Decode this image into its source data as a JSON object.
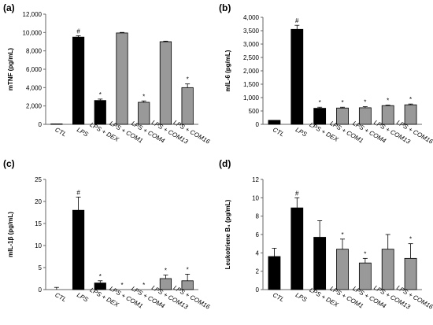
{
  "chart_data": [
    {
      "type": "bar",
      "panel_label": "(a)",
      "ylabel": "mTNF (pg/mL)",
      "ylim": [
        0,
        12000
      ],
      "yticks": [
        0,
        2000,
        4000,
        6000,
        8000,
        10000,
        12000
      ],
      "ytick_labels": [
        "0",
        "2,000",
        "4,000",
        "6,000",
        "8,000",
        "10,000",
        "12,000"
      ],
      "categories": [
        "CTL",
        "LPS",
        "LPS + DEX",
        "LPS + COM1",
        "LPS + COM4",
        "LPS + COM13",
        "LPS + COM16"
      ],
      "values": [
        50,
        9500,
        2600,
        9950,
        2400,
        9000,
        4000
      ],
      "errors": [
        0,
        150,
        150,
        60,
        150,
        60,
        400
      ],
      "bar_colors": [
        "#000000",
        "#000000",
        "#000000",
        "#999999",
        "#999999",
        "#999999",
        "#999999"
      ],
      "marks": [
        "",
        "#",
        "*",
        "",
        "*",
        "",
        "*"
      ],
      "grid": false
    },
    {
      "type": "bar",
      "panel_label": "(b)",
      "ylabel": "mIL-6 (pg/mL)",
      "ylim": [
        0,
        4000
      ],
      "yticks": [
        0,
        500,
        1000,
        1500,
        2000,
        2500,
        3000,
        3500,
        4000
      ],
      "ytick_labels": [
        "0",
        "500",
        "1,000",
        "1,500",
        "2,000",
        "2,500",
        "3,000",
        "3,500",
        "4,000"
      ],
      "categories": [
        "CTL",
        "LPS",
        "LPS + DEX",
        "LPS + COM1",
        "LPS + COM4",
        "LPS + COM13",
        "LPS + COM16"
      ],
      "values": [
        150,
        3550,
        600,
        610,
        620,
        700,
        730
      ],
      "errors": [
        0,
        150,
        40,
        30,
        40,
        20,
        30
      ],
      "bar_colors": [
        "#000000",
        "#000000",
        "#000000",
        "#999999",
        "#999999",
        "#999999",
        "#999999"
      ],
      "marks": [
        "",
        "#",
        "*",
        "*",
        "*",
        "*",
        "*"
      ],
      "grid": false
    },
    {
      "type": "bar",
      "panel_label": "(c)",
      "ylabel": "mIL-1β (pg/mL)",
      "ylim": [
        0,
        25
      ],
      "yticks": [
        0,
        5,
        10,
        15,
        20,
        25
      ],
      "ytick_labels": [
        "0",
        "5",
        "10",
        "15",
        "20",
        "25"
      ],
      "categories": [
        "CTL",
        "LPS",
        "LPS + DEX",
        "LPS + COM1",
        "LPS + COM4",
        "LPS + COM13",
        "LPS + COM16"
      ],
      "values": [
        0,
        18,
        1.5,
        0,
        0,
        2.5,
        2
      ],
      "errors": [
        0.5,
        3,
        0.5,
        0,
        0,
        0.8,
        1.5
      ],
      "bar_colors": [
        "#000000",
        "#000000",
        "#000000",
        "#999999",
        "#999999",
        "#999999",
        "#999999"
      ],
      "marks": [
        "",
        "#",
        "*",
        "*",
        "*",
        "*",
        "*"
      ],
      "grid": false
    },
    {
      "type": "bar",
      "panel_label": "(d)",
      "ylabel": "Leukotriene B₄ (pg/mL)",
      "ylim": [
        0,
        12
      ],
      "yticks": [
        0,
        2,
        4,
        6,
        8,
        10,
        12
      ],
      "ytick_labels": [
        "0",
        "2",
        "4",
        "6",
        "8",
        "10",
        "12"
      ],
      "categories": [
        "CTL",
        "LPS",
        "LPS + DEX",
        "LPS + COM1",
        "LPS + COM4",
        "LPS + COM13",
        "LPS + COM16"
      ],
      "values": [
        3.6,
        8.9,
        5.7,
        4.4,
        2.9,
        4.4,
        3.4
      ],
      "errors": [
        0.9,
        1.1,
        1.8,
        1.1,
        0.5,
        1.6,
        1.6
      ],
      "bar_colors": [
        "#000000",
        "#000000",
        "#000000",
        "#999999",
        "#999999",
        "#999999",
        "#999999"
      ],
      "marks": [
        "",
        "#",
        "",
        "*",
        "*",
        "",
        "*"
      ],
      "grid": false
    }
  ]
}
